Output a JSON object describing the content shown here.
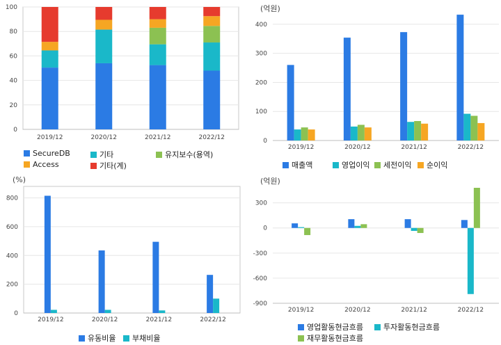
{
  "colors": {
    "blue": "#2b7be4",
    "cyan": "#1ab8c9",
    "green": "#8cc152",
    "orange": "#f6a623",
    "red": "#e63b2e"
  },
  "chart_data": [
    {
      "id": "tl",
      "type": "bar",
      "stacked": true,
      "unit": "",
      "categories": [
        "2019/12",
        "2020/12",
        "2021/12",
        "2022/12"
      ],
      "ylim": [
        0,
        100
      ],
      "yticks": [
        0,
        20,
        40,
        60,
        80,
        100
      ],
      "series": [
        {
          "name": "SecureDB",
          "color": "#2b7be4",
          "values": [
            50.5,
            54,
            52.5,
            48
          ]
        },
        {
          "name": "기타",
          "color": "#1ab8c9",
          "values": [
            14,
            27.5,
            17,
            23
          ]
        },
        {
          "name": "유지보수(용역)",
          "color": "#8cc152",
          "values": [
            0,
            0,
            13.5,
            13.5
          ]
        },
        {
          "name": "Access",
          "color": "#f6a623",
          "values": [
            7,
            8,
            7,
            8
          ]
        },
        {
          "name": "기타(계)",
          "color": "#e63b2e",
          "values": [
            28.5,
            10.5,
            10,
            7.5
          ]
        }
      ],
      "legend_order": [
        "SecureDB",
        "기타",
        "유지보수(용역)",
        "Access",
        "기타(계)"
      ]
    },
    {
      "id": "tr",
      "type": "bar",
      "unit": "(억원)",
      "categories": [
        "2019/12",
        "2020/12",
        "2021/12",
        "2022/12"
      ],
      "ylim": [
        0,
        450
      ],
      "yticks": [
        0,
        100,
        200,
        300,
        400
      ],
      "series": [
        {
          "name": "매출액",
          "color": "#2b7be4",
          "values": [
            260,
            354,
            373,
            433
          ]
        },
        {
          "name": "영업이익",
          "color": "#1ab8c9",
          "values": [
            38,
            48,
            64,
            92
          ]
        },
        {
          "name": "세전이익",
          "color": "#8cc152",
          "values": [
            45,
            54,
            67,
            85
          ]
        },
        {
          "name": "순이익",
          "color": "#f6a623",
          "values": [
            38,
            45,
            58,
            60
          ]
        }
      ]
    },
    {
      "id": "bl",
      "type": "bar",
      "unit": "(%)",
      "categories": [
        "2019/12",
        "2020/12",
        "2021/12",
        "2022/12"
      ],
      "ylim": [
        0,
        880
      ],
      "yticks": [
        0,
        200,
        400,
        600,
        800
      ],
      "series": [
        {
          "name": "유동비율",
          "color": "#2b7be4",
          "values": [
            815,
            435,
            495,
            265
          ]
        },
        {
          "name": "부채비율",
          "color": "#1ab8c9",
          "values": [
            22,
            22,
            18,
            100
          ]
        }
      ]
    },
    {
      "id": "br",
      "type": "bar",
      "unit": "(억원)",
      "categories": [
        "2019/12",
        "2020/12",
        "2021/12",
        "2022/12"
      ],
      "ylim": [
        -900,
        480
      ],
      "yticks": [
        -900,
        -600,
        -300,
        0,
        300
      ],
      "series": [
        {
          "name": "영업활동현금흐름",
          "color": "#2b7be4",
          "values": [
            55,
            105,
            105,
            95
          ]
        },
        {
          "name": "투자활동현금흐름",
          "color": "#1ab8c9",
          "values": [
            10,
            25,
            -35,
            -790
          ]
        },
        {
          "name": "재무활동현금흐름",
          "color": "#8cc152",
          "values": [
            -85,
            45,
            -60,
            480
          ]
        }
      ]
    }
  ]
}
